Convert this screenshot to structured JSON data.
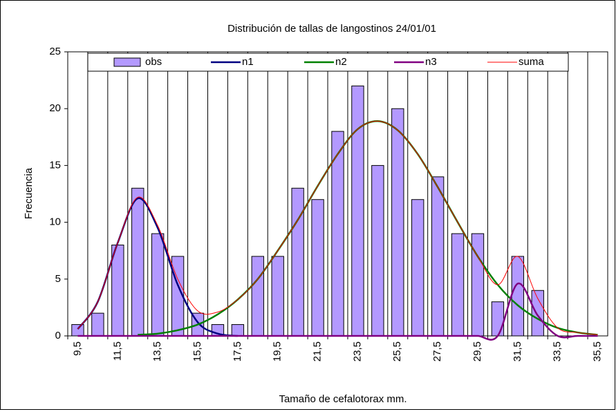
{
  "chart_data": {
    "type": "bar",
    "title": "Distribución de tallas de langostinos 24/01/01",
    "x_label": "Tamaño de cefalotorax mm.",
    "y_label": "Frecuencia",
    "categories": [
      "9,5",
      null,
      "11,5",
      null,
      "13,5",
      null,
      "15,5",
      null,
      "17,5",
      null,
      "19,5",
      null,
      "21,5",
      null,
      "23,5",
      null,
      "25,5",
      null,
      "27,5",
      null,
      "29,5",
      null,
      "31,5",
      null,
      "33,5",
      null,
      "35,5"
    ],
    "series": [
      {
        "name": "obs",
        "type": "bar",
        "color": "#b399ff",
        "values": [
          1,
          2,
          8,
          13,
          9,
          7,
          2,
          1,
          1,
          7,
          7,
          13,
          12,
          18,
          22,
          15,
          20,
          12,
          14,
          9,
          9,
          3,
          7,
          4,
          0,
          0,
          0
        ]
      },
      {
        "name": "n1",
        "type": "line",
        "color": "#000080",
        "values": [
          0.6,
          3,
          8.2,
          12.1,
          9.5,
          4.5,
          1.2,
          0.2,
          0,
          null,
          null,
          null,
          null,
          null,
          null,
          null,
          null,
          null,
          null,
          null,
          null,
          null,
          null,
          null,
          null,
          null,
          null
        ]
      },
      {
        "name": "n2",
        "type": "line",
        "color": "#008000",
        "values": [
          null,
          null,
          null,
          0.1,
          0.2,
          0.5,
          1,
          1.9,
          3.2,
          5,
          7.5,
          10.2,
          13.2,
          16,
          18.2,
          18.9,
          18.1,
          16,
          13.1,
          10,
          7,
          4.5,
          2.7,
          1.5,
          0.7,
          0.3,
          0.1
        ]
      },
      {
        "name": "n3",
        "type": "line",
        "color": "#800080",
        "values": [
          0,
          0,
          0,
          0,
          0,
          0,
          0,
          0,
          0,
          0,
          0,
          0,
          0,
          0,
          0,
          0,
          0,
          0,
          0,
          0,
          0,
          0,
          4.6,
          1.8,
          0,
          0,
          0
        ]
      },
      {
        "name": "suma",
        "type": "line",
        "color": "#ff0000",
        "values": [
          0.6,
          3,
          8.2,
          12.2,
          9.7,
          5,
          2.2,
          2.1,
          3.2,
          5,
          7.5,
          10.2,
          13.2,
          16,
          18.2,
          18.9,
          18.1,
          16,
          13.1,
          10,
          7,
          4.5,
          7,
          3.3,
          0.7,
          0.3,
          0.1
        ]
      }
    ],
    "ylim": [
      0,
      25
    ],
    "yticks": [
      0,
      5,
      10,
      15,
      20,
      25
    ]
  }
}
